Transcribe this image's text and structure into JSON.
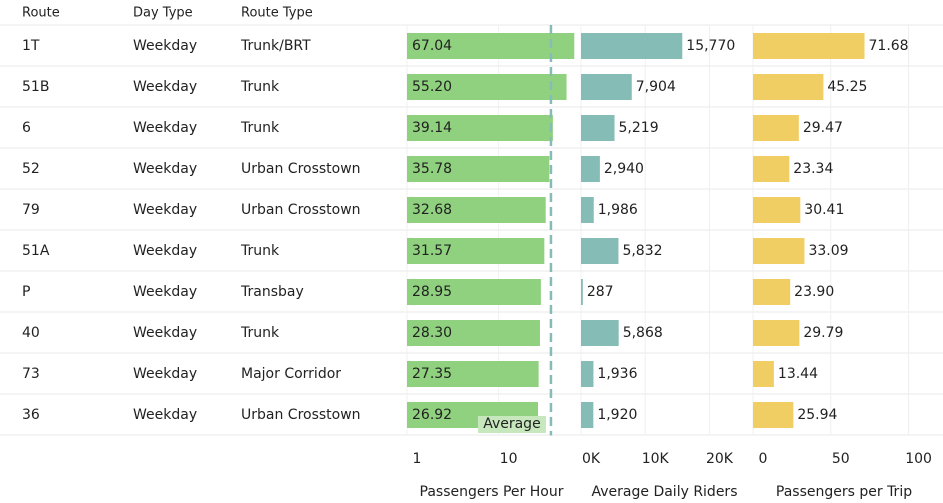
{
  "table": {
    "columns": [
      "Route",
      "Day Type",
      "Route Type"
    ],
    "rows": [
      [
        "1T",
        "Weekday",
        "Trunk/BRT"
      ],
      [
        "51B",
        "Weekday",
        "Trunk"
      ],
      [
        "6",
        "Weekday",
        "Trunk"
      ],
      [
        "52",
        "Weekday",
        "Urban Crosstown"
      ],
      [
        "79",
        "Weekday",
        "Urban Crosstown"
      ],
      [
        "51A",
        "Weekday",
        "Trunk"
      ],
      [
        "P",
        "Weekday",
        "Transbay"
      ],
      [
        "40",
        "Weekday",
        "Trunk"
      ],
      [
        "73",
        "Weekday",
        "Major Corridor"
      ],
      [
        "36",
        "Weekday",
        "Urban Crosstown"
      ]
    ]
  },
  "chart_data": [
    {
      "type": "bar",
      "orientation": "horizontal",
      "x_label": "Passengers Per Hour",
      "color": "#8fd17e",
      "log_scale": true,
      "values": [
        67.04,
        55.2,
        39.14,
        35.78,
        32.68,
        31.57,
        28.95,
        28.3,
        27.35,
        26.92
      ],
      "value_labels": [
        "67.04",
        "55.20",
        "39.14",
        "35.78",
        "32.68",
        "31.57",
        "28.95",
        "28.30",
        "27.35",
        "26.92"
      ],
      "xlim": [
        1,
        70
      ],
      "xticks": [
        1,
        10
      ],
      "reference_line": {
        "label": "Average",
        "value": 37.29,
        "color": "#86bcb6"
      }
    },
    {
      "type": "bar",
      "orientation": "horizontal",
      "x_label": "Average Daily Riders",
      "color": "#86bcb6",
      "values": [
        15770,
        7904,
        5219,
        2940,
        1986,
        5832,
        287,
        5868,
        1936,
        1920
      ],
      "value_labels": [
        "15,770",
        "7,904",
        "5,219",
        "2,940",
        "1,986",
        "5,832",
        "287",
        "5,868",
        "1,936",
        "1,920"
      ],
      "xlim": [
        0,
        26000
      ],
      "xticks": [
        {
          "value": 0,
          "label": "0K"
        },
        {
          "value": 10000,
          "label": "10K"
        },
        {
          "value": 20000,
          "label": "20K"
        }
      ]
    },
    {
      "type": "bar",
      "orientation": "horizontal",
      "x_label": "Passengers per Trip",
      "color": "#f1ce63",
      "values": [
        71.68,
        45.25,
        29.47,
        23.34,
        30.41,
        33.09,
        23.9,
        29.79,
        13.44,
        25.94
      ],
      "value_labels": [
        "71.68",
        "45.25",
        "29.47",
        "23.34",
        "30.41",
        "33.09",
        "23.90",
        "29.79",
        "13.44",
        "25.94"
      ],
      "xlim": [
        0,
        117
      ],
      "xticks": [
        0,
        50,
        100
      ]
    }
  ]
}
